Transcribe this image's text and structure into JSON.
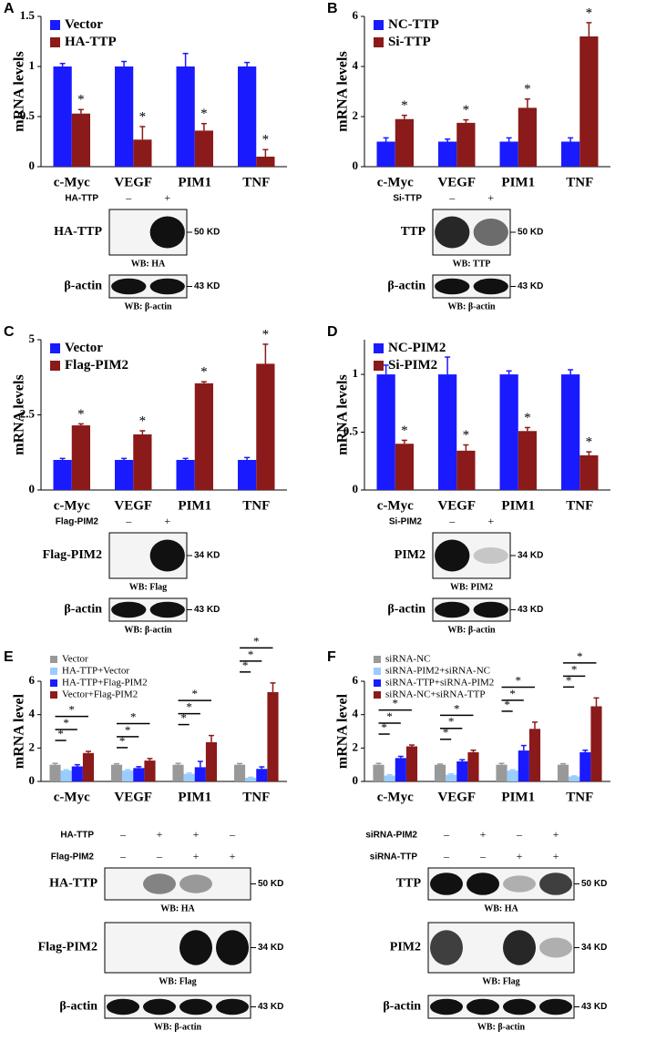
{
  "chart_data": [
    {
      "type": "bar",
      "panel": "A",
      "ylabel": "mRNA levels",
      "categories": [
        "c-Myc",
        "VEGF",
        "PIM1",
        "TNF"
      ],
      "ylim": [
        0,
        1.5
      ],
      "yticks": [
        0,
        0.5,
        1,
        1.5
      ],
      "legend": "upper left",
      "series": [
        {
          "name": "Vector",
          "color": "#1a1aff",
          "values": [
            1,
            1,
            1,
            1
          ],
          "errors": [
            0.03,
            0.05,
            0.13,
            0.04
          ]
        },
        {
          "name": "HA-TTP",
          "color": "#8b1a1a",
          "values": [
            0.53,
            0.27,
            0.36,
            0.1
          ],
          "errors": [
            0.04,
            0.13,
            0.07,
            0.07
          ],
          "significance": [
            "*",
            "*",
            "*",
            "*"
          ]
        }
      ],
      "conditions": [
        {
          "name": "HA-TTP",
          "signs": [
            "–",
            "+"
          ]
        }
      ],
      "blots": [
        {
          "label": "HA-TTP",
          "size": "50 KD",
          "wb": "WB: HA"
        },
        {
          "label": "β-actin",
          "size": "43 KD",
          "wb": "WB: β-actin"
        }
      ]
    },
    {
      "type": "bar",
      "panel": "B",
      "ylabel": "mRNA levels",
      "categories": [
        "c-Myc",
        "VEGF",
        "PIM1",
        "TNF"
      ],
      "ylim": [
        0,
        6
      ],
      "yticks": [
        0,
        2,
        4,
        6
      ],
      "legend": "upper left",
      "series": [
        {
          "name": "NC-TTP",
          "color": "#1a1aff",
          "values": [
            1,
            1,
            1,
            1
          ],
          "errors": [
            0.15,
            0.1,
            0.15,
            0.15
          ]
        },
        {
          "name": "Si-TTP",
          "color": "#8b1a1a",
          "values": [
            1.9,
            1.75,
            2.35,
            5.2
          ],
          "errors": [
            0.15,
            0.12,
            0.35,
            0.55
          ],
          "significance": [
            "*",
            "*",
            "*",
            "*"
          ]
        }
      ],
      "conditions": [
        {
          "name": "Si-TTP",
          "signs": [
            "–",
            "+"
          ]
        }
      ],
      "blots": [
        {
          "label": "TTP",
          "size": "50 KD",
          "wb": "WB: TTP"
        },
        {
          "label": "β-actin",
          "size": "43 KD",
          "wb": "WB: β-actin"
        }
      ]
    },
    {
      "type": "bar",
      "panel": "C",
      "ylabel": "mRNA levels",
      "categories": [
        "c-Myc",
        "VEGF",
        "PIM1",
        "TNF"
      ],
      "ylim": [
        0,
        5
      ],
      "yticks": [
        0,
        2.5,
        5
      ],
      "legend": "upper left",
      "series": [
        {
          "name": "Vector",
          "color": "#1a1aff",
          "values": [
            1,
            1,
            1,
            1
          ],
          "errors": [
            0.05,
            0.05,
            0.05,
            0.08
          ]
        },
        {
          "name": "Flag-PIM2",
          "color": "#8b1a1a",
          "values": [
            2.15,
            1.85,
            3.55,
            4.2
          ],
          "errors": [
            0.05,
            0.12,
            0.05,
            0.65
          ],
          "significance": [
            "*",
            "*",
            "*",
            "*"
          ]
        }
      ],
      "conditions": [
        {
          "name": "Flag-PIM2",
          "signs": [
            "–",
            "+"
          ]
        }
      ],
      "blots": [
        {
          "label": "Flag-PIM2",
          "size": "34 KD",
          "wb": "WB: Flag"
        },
        {
          "label": "β-actin",
          "size": "43 KD",
          "wb": "WB: β-actin"
        }
      ]
    },
    {
      "type": "bar",
      "panel": "D",
      "ylabel": "mRNA levels",
      "categories": [
        "c-Myc",
        "VEGF",
        "PIM1",
        "TNF"
      ],
      "ylim": [
        0,
        1.3
      ],
      "yticks": [
        0,
        0.5,
        1
      ],
      "legend": "upper left",
      "series": [
        {
          "name": "NC-PIM2",
          "color": "#1a1aff",
          "values": [
            1,
            1,
            1,
            1
          ],
          "errors": [
            0.08,
            0.15,
            0.03,
            0.04
          ]
        },
        {
          "name": "Si-PIM2",
          "color": "#8b1a1a",
          "values": [
            0.4,
            0.34,
            0.51,
            0.3
          ],
          "errors": [
            0.03,
            0.05,
            0.03,
            0.03
          ],
          "significance": [
            "*",
            "*",
            "*",
            "*"
          ]
        }
      ],
      "conditions": [
        {
          "name": "Si-PIM2",
          "signs": [
            "–",
            "+"
          ]
        }
      ],
      "blots": [
        {
          "label": "PIM2",
          "size": "34 KD",
          "wb": "WB: PIM2"
        },
        {
          "label": "β-actin",
          "size": "43 KD",
          "wb": "WB: β-actin"
        }
      ]
    },
    {
      "type": "grouped-bar",
      "panel": "E",
      "ylabel": "mRNA level",
      "categories": [
        "c-Myc",
        "VEGF",
        "PIM1",
        "TNF"
      ],
      "ylim": [
        0,
        6
      ],
      "yticks": [
        0,
        2,
        4,
        6
      ],
      "legend": "upper left",
      "series": [
        {
          "name": "Vector",
          "color": "#999999",
          "values": [
            1,
            1,
            1,
            1
          ],
          "errors": [
            0.08,
            0.06,
            0.08,
            0.07
          ]
        },
        {
          "name": "HA-TTP+Vector",
          "color": "#99ccff",
          "values": [
            0.65,
            0.65,
            0.45,
            0.22
          ],
          "errors": [
            0.05,
            0.05,
            0.05,
            0.03
          ]
        },
        {
          "name": "HA-TTP+Flag-PIM2",
          "color": "#1a1aff",
          "values": [
            0.9,
            0.8,
            0.85,
            0.75
          ],
          "errors": [
            0.1,
            0.08,
            0.35,
            0.12
          ]
        },
        {
          "name": "Vector+Flag-PIM2",
          "color": "#8b1a1a",
          "values": [
            1.7,
            1.25,
            2.35,
            5.35
          ],
          "errors": [
            0.1,
            0.12,
            0.4,
            0.55
          ]
        }
      ],
      "comparisons": [
        [
          "*",
          "*",
          "*"
        ],
        [
          "*",
          "*",
          "*"
        ],
        [
          "*",
          "*",
          "*"
        ],
        [
          "*",
          "*",
          "*"
        ]
      ],
      "conditions": [
        {
          "name": "HA-TTP",
          "signs": [
            "–",
            "+",
            "+",
            "–"
          ]
        },
        {
          "name": "Flag-PIM2",
          "signs": [
            "–",
            "–",
            "+",
            "+"
          ]
        }
      ],
      "blots": [
        {
          "label": "HA-TTP",
          "size": "50 KD",
          "wb": "WB: HA"
        },
        {
          "label": "Flag-PIM2",
          "size": "34 KD",
          "wb": "WB: Flag"
        },
        {
          "label": "β-actin",
          "size": "43 KD",
          "wb": "WB: β-actin"
        }
      ]
    },
    {
      "type": "grouped-bar",
      "panel": "F",
      "ylabel": "mRNA level",
      "categories": [
        "c-Myc",
        "VEGF",
        "PIM1",
        "TNF"
      ],
      "ylim": [
        0,
        6
      ],
      "yticks": [
        0,
        2,
        4,
        6
      ],
      "legend": "upper left",
      "series": [
        {
          "name": "siRNA-NC",
          "color": "#999999",
          "values": [
            1,
            1,
            1,
            1
          ],
          "errors": [
            0.08,
            0.04,
            0.08,
            0.06
          ]
        },
        {
          "name": "siRNA-PIM2+siRNA-NC",
          "color": "#99ccff",
          "values": [
            0.35,
            0.4,
            0.65,
            0.3
          ],
          "errors": [
            0.05,
            0.05,
            0.05,
            0.03
          ]
        },
        {
          "name": "siRNA-TTP+siRNA-PIM2",
          "color": "#1a1aff",
          "values": [
            1.4,
            1.2,
            1.85,
            1.75
          ],
          "errors": [
            0.1,
            0.1,
            0.3,
            0.12
          ]
        },
        {
          "name": "siRNA-NC+siRNA-TTP",
          "color": "#8b1a1a",
          "values": [
            2.1,
            1.75,
            3.15,
            4.5
          ],
          "errors": [
            0.08,
            0.12,
            0.4,
            0.5
          ]
        }
      ],
      "comparisons": [
        [
          "*",
          "*",
          "*"
        ],
        [
          "*",
          "*",
          "*"
        ],
        [
          "*",
          "*",
          "*"
        ],
        [
          "*",
          "*",
          "*"
        ]
      ],
      "conditions": [
        {
          "name": "siRNA-PIM2",
          "signs": [
            "–",
            "+",
            "–",
            "+"
          ]
        },
        {
          "name": "siRNA-TTP",
          "signs": [
            "–",
            "–",
            "+",
            "+"
          ]
        }
      ],
      "blots": [
        {
          "label": "TTP",
          "size": "50 KD",
          "wb": "WB: HA"
        },
        {
          "label": "PIM2",
          "size": "34 KD",
          "wb": "WB: Flag"
        },
        {
          "label": "β-actin",
          "size": "43 KD",
          "wb": "WB: β-actin"
        }
      ]
    }
  ]
}
